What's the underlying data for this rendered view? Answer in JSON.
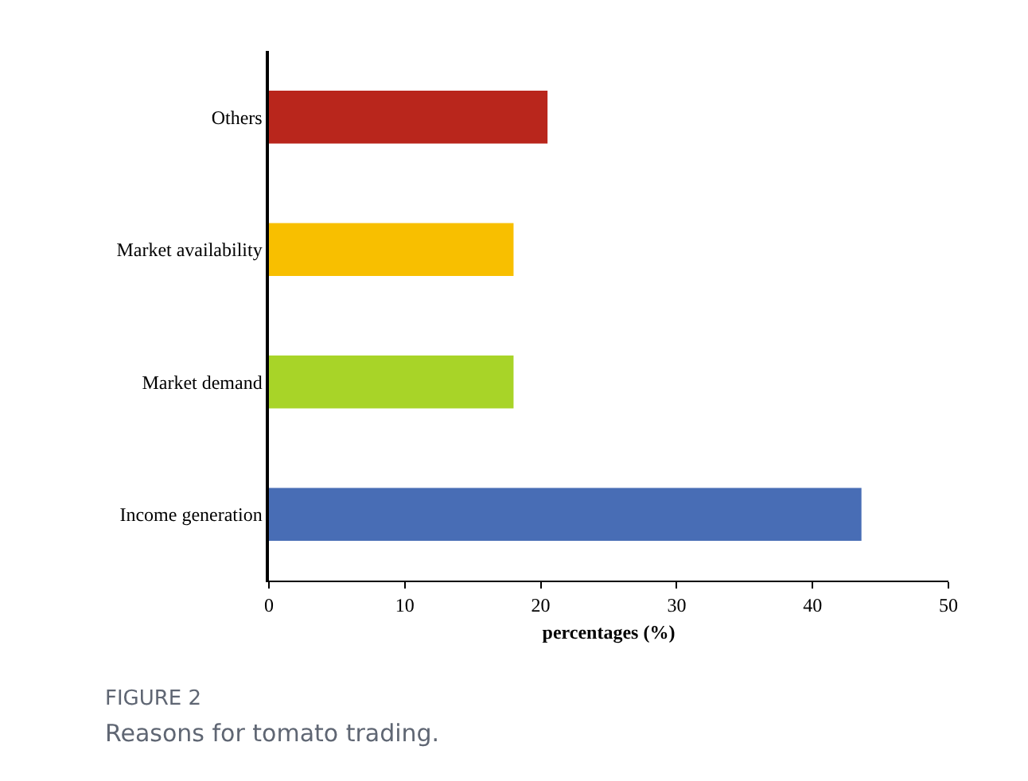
{
  "chart_data": {
    "type": "bar",
    "orientation": "horizontal",
    "title": "FIGURE 2",
    "subtitle": "Reasons for tomato trading.",
    "xlabel": "percentages (%)",
    "categories": [
      "Others",
      "Market availability",
      "Market demand",
      "Income generation"
    ],
    "values": [
      20.5,
      18,
      18,
      43.6
    ],
    "colors": [
      "#b9261c",
      "#f8bf00",
      "#a8d428",
      "#486db5"
    ],
    "xlim": [
      0,
      50
    ],
    "xticks": [
      0,
      10,
      20,
      30,
      40,
      50
    ],
    "legend": false
  }
}
